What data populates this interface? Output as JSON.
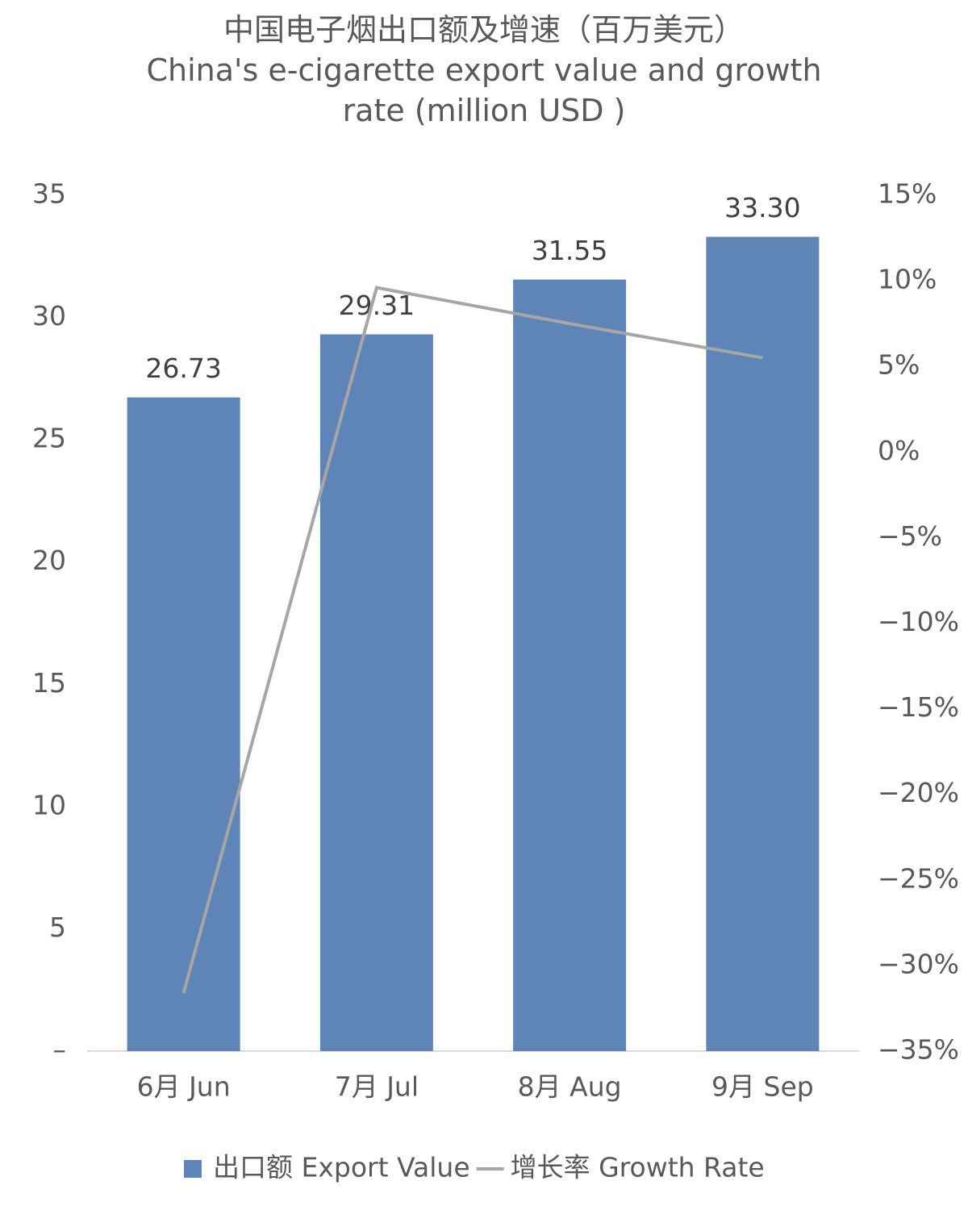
{
  "chart_data": {
    "type": "bar-line",
    "title": "中国电子烟出口额及增速（百万美元）",
    "subtitle": "China's e-cigarette export value and growth rate (million USD )",
    "categories": [
      "6月 Jun",
      "7月 Jul",
      "8月 Aug",
      "9月 Sep"
    ],
    "series": [
      {
        "name": "出口额 Export Value",
        "type": "bar",
        "color": "#5f84b8",
        "values": [
          26.73,
          29.31,
          31.55,
          33.3
        ],
        "value_labels": [
          "26.73",
          "29.31",
          "31.55",
          "33.30"
        ]
      },
      {
        "name": "增长率 Growth Rate",
        "type": "line",
        "axis": "y2",
        "color": "#a6a6a6",
        "values": [
          -31.6,
          9.6,
          7.5,
          5.5
        ]
      }
    ],
    "ylim": [
      0,
      35
    ],
    "yticks": [
      {
        "value": 0,
        "label": "–"
      },
      5,
      10,
      15,
      20,
      25,
      30,
      35
    ],
    "y2lim": [
      -35,
      15
    ],
    "y2ticks": [
      {
        "value": -35,
        "label": "−35%"
      },
      {
        "value": -30,
        "label": "−30%"
      },
      {
        "value": -25,
        "label": "−25%"
      },
      {
        "value": -20,
        "label": "−20%"
      },
      {
        "value": -15,
        "label": "−15%"
      },
      {
        "value": -10,
        "label": "−10%"
      },
      {
        "value": -5,
        "label": "−5%"
      },
      {
        "value": 0,
        "label": "0%"
      },
      {
        "value": 5,
        "label": "5%"
      },
      {
        "value": 10,
        "label": "10%"
      },
      {
        "value": 15,
        "label": "15%"
      }
    ],
    "grid": false,
    "legend": "bottom"
  }
}
